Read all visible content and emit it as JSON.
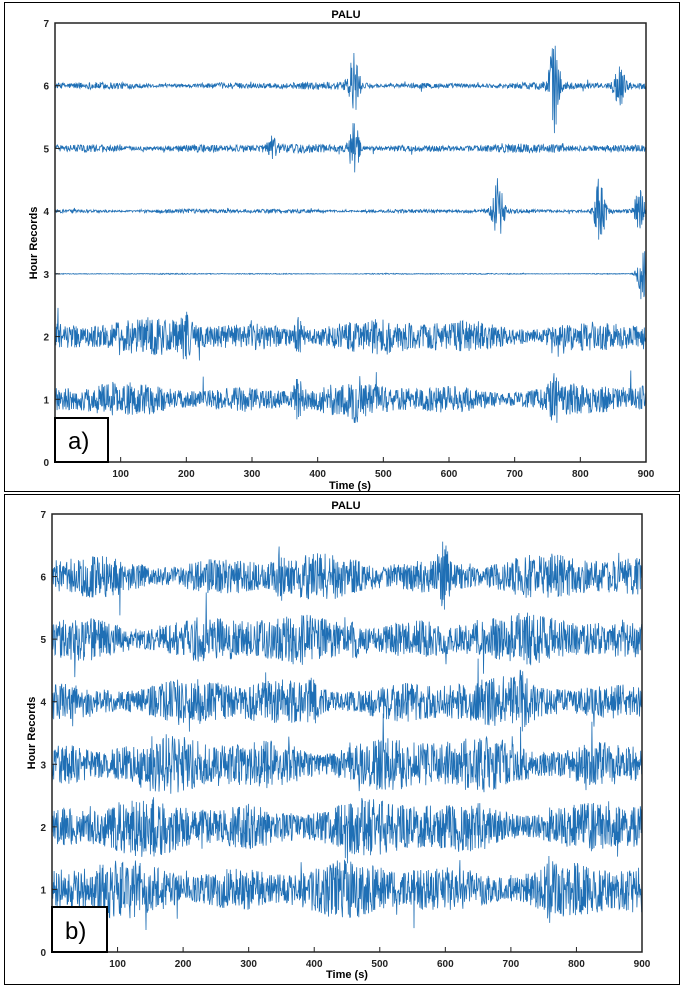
{
  "chart_data": [
    {
      "panel": "a",
      "type": "line",
      "title": "PALU",
      "xlabel": "Time (s)",
      "ylabel": "Hour Records",
      "panel_label": "a)",
      "xlim": [
        0,
        900
      ],
      "ylim": [
        0,
        7
      ],
      "xticks": [
        100,
        200,
        300,
        400,
        500,
        600,
        700,
        800,
        900
      ],
      "yticks": [
        0,
        1,
        2,
        3,
        4,
        5,
        6,
        7
      ],
      "grid": false,
      "color": "#1f6fb5",
      "series": [
        {
          "baseline": 6,
          "amplitude": 0.06,
          "bursts": [
            {
              "t": 455,
              "amp": 0.5
            },
            {
              "t": 760,
              "amp": 0.7
            },
            {
              "t": 860,
              "amp": 0.3
            }
          ]
        },
        {
          "baseline": 5,
          "amplitude": 0.07,
          "bursts": [
            {
              "t": 455,
              "amp": 0.45
            },
            {
              "t": 330,
              "amp": 0.15
            }
          ]
        },
        {
          "baseline": 4,
          "amplitude": 0.035,
          "bursts": [
            {
              "t": 675,
              "amp": 0.6
            },
            {
              "t": 830,
              "amp": 0.55
            },
            {
              "t": 890,
              "amp": 0.35
            }
          ]
        },
        {
          "baseline": 3,
          "amplitude": 0.008,
          "bursts": [
            {
              "t": 895,
              "amp": 0.45
            }
          ]
        },
        {
          "baseline": 2,
          "amplitude": 0.28,
          "bursts": [
            {
              "t": 370,
              "amp": 0.2
            },
            {
              "t": 200,
              "amp": 0.2
            }
          ]
        },
        {
          "baseline": 1,
          "amplitude": 0.26,
          "bursts": [
            {
              "t": 370,
              "amp": 0.2
            },
            {
              "t": 460,
              "amp": 0.15
            },
            {
              "t": 760,
              "amp": 0.2
            }
          ]
        }
      ]
    },
    {
      "panel": "b",
      "type": "line",
      "title": "PALU",
      "xlabel": "Time (s)",
      "ylabel": "Hour Records",
      "panel_label": "b)",
      "xlim": [
        0,
        900
      ],
      "ylim": [
        0,
        7
      ],
      "xticks": [
        100,
        200,
        300,
        400,
        500,
        600,
        700,
        800,
        900
      ],
      "yticks": [
        0,
        1,
        2,
        3,
        4,
        5,
        6,
        7
      ],
      "grid": false,
      "color": "#1f6fb5",
      "series": [
        {
          "baseline": 6,
          "amplitude": 0.35,
          "bursts": [
            {
              "t": 597,
              "amp": 0.35
            },
            {
              "t": 350,
              "amp": 0.15
            }
          ]
        },
        {
          "baseline": 5,
          "amplitude": 0.4,
          "bursts": [
            {
              "t": 460,
              "amp": 0.15
            }
          ]
        },
        {
          "baseline": 4,
          "amplitude": 0.38,
          "bursts": [
            {
              "t": 395,
              "amp": 0.2
            },
            {
              "t": 715,
              "amp": 0.15
            }
          ]
        },
        {
          "baseline": 3,
          "amplitude": 0.45,
          "bursts": []
        },
        {
          "baseline": 2,
          "amplitude": 0.45,
          "bursts": []
        },
        {
          "baseline": 1,
          "amplitude": 0.45,
          "bursts": [
            {
              "t": 760,
              "amp": 0.2
            }
          ]
        }
      ]
    }
  ]
}
